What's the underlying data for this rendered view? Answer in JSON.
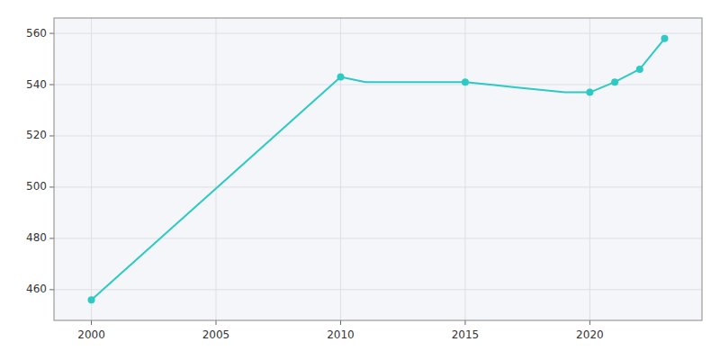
{
  "chart_data": {
    "type": "line",
    "x": [
      2000,
      2010,
      2011,
      2012,
      2013,
      2014,
      2015,
      2016,
      2017,
      2018,
      2019,
      2020,
      2021,
      2022,
      2023
    ],
    "series": [
      {
        "color": "#2dc9c4",
        "marker": "none",
        "line_style": "solid",
        "values": [
          456,
          543,
          541,
          541,
          541,
          541,
          541,
          540,
          539,
          538,
          537,
          537,
          541,
          546,
          558
        ]
      },
      {
        "color": "#2dc9c4",
        "marker": "circle",
        "line_style": "none",
        "values": [
          456,
          543,
          null,
          null,
          null,
          null,
          541,
          null,
          null,
          null,
          null,
          537,
          541,
          546,
          558
        ]
      }
    ],
    "xlim": [
      1998.5,
      2024.5
    ],
    "ylim": [
      448,
      566
    ],
    "xticks": [
      2000,
      2005,
      2010,
      2015,
      2020
    ],
    "yticks": [
      460,
      480,
      500,
      520,
      540,
      560
    ],
    "grid": true
  }
}
